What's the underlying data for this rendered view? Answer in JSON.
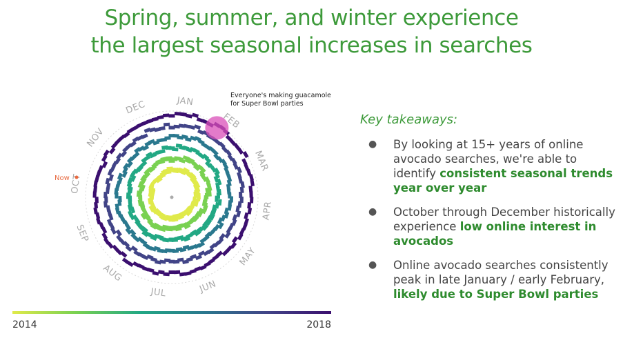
{
  "title": {
    "line1": "Spring, summer, and winter experience",
    "line2": "the largest seasonal increases in searches"
  },
  "chart_data": {
    "type": "radial-heatmap",
    "months": [
      "JAN",
      "FEB",
      "MAR",
      "APR",
      "MAY",
      "JUN",
      "JUL",
      "AUG",
      "SEP",
      "OCT",
      "NOV",
      "DEC"
    ],
    "color_scale": {
      "start_label": "2014",
      "end_label": "2018",
      "start_color": "#e0ea4a",
      "end_color": "#3b0f6f"
    },
    "annotation": {
      "line1": "Everyone's making guacamole",
      "line2": "for Super Bowl parties",
      "month_position": 1.1
    },
    "now_marker": {
      "label": "Now",
      "month_position": 9.6
    },
    "peak_color": "#d94fb8"
  },
  "takeaways": {
    "heading": "Key takeaways:",
    "bullet": "●",
    "items": [
      {
        "before": "By looking at 15+ years of online avocado searches, we're able to identify ",
        "highlight": "consistent seasonal trends year over year",
        "after": ""
      },
      {
        "before": "October through December historically experience ",
        "highlight": "low online interest in avocados",
        "after": ""
      },
      {
        "before": "Online avocado searches consistently peak in late January / early February, ",
        "highlight": "likely due to Super Bowl parties",
        "after": ""
      }
    ]
  }
}
